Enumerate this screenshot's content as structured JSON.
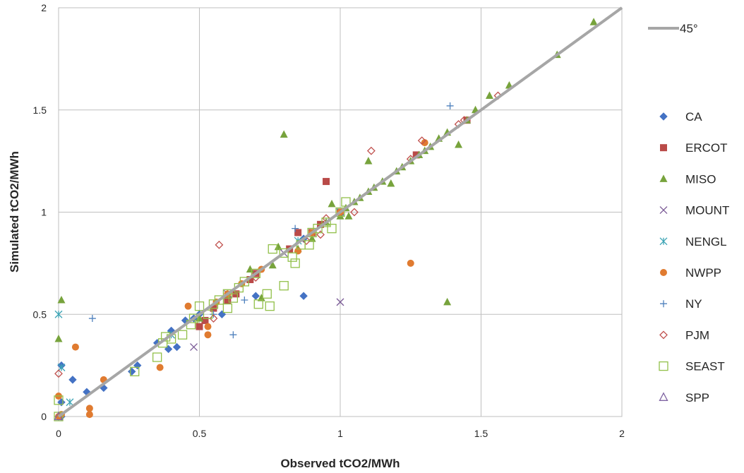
{
  "chart_data": {
    "type": "scatter",
    "xlabel": "Observed tCO2/MWh",
    "ylabel": "Simulated tCO2/MWh",
    "xlim": [
      0,
      2
    ],
    "ylim": [
      0,
      2
    ],
    "x_ticks": [
      "0",
      "0.5",
      "1",
      "1.5",
      "2"
    ],
    "y_ticks": [
      "0",
      "0.5",
      "1",
      "1.5",
      "2"
    ],
    "grid": true,
    "legend_position": "right",
    "reference_line": {
      "name": "45°",
      "from": [
        0,
        0
      ],
      "to": [
        2,
        2
      ],
      "color": "#a6a6a6"
    },
    "series": [
      {
        "name": "CA",
        "marker": "diamond",
        "color": "#4472c4",
        "points": [
          [
            0.0,
            0.0
          ],
          [
            0.01,
            0.0
          ],
          [
            0.01,
            0.25
          ],
          [
            0.01,
            0.07
          ],
          [
            0.05,
            0.18
          ],
          [
            0.1,
            0.12
          ],
          [
            0.16,
            0.14
          ],
          [
            0.26,
            0.22
          ],
          [
            0.28,
            0.25
          ],
          [
            0.35,
            0.36
          ],
          [
            0.39,
            0.33
          ],
          [
            0.4,
            0.42
          ],
          [
            0.42,
            0.34
          ],
          [
            0.45,
            0.47
          ],
          [
            0.48,
            0.48
          ],
          [
            0.5,
            0.5
          ],
          [
            0.58,
            0.5
          ],
          [
            0.7,
            0.59
          ],
          [
            0.87,
            0.59
          ],
          [
            0.87,
            0.87
          ]
        ]
      },
      {
        "name": "ERCOT",
        "marker": "square",
        "color": "#b94a48",
        "points": [
          [
            0.5,
            0.44
          ],
          [
            0.52,
            0.47
          ],
          [
            0.55,
            0.53
          ],
          [
            0.6,
            0.57
          ],
          [
            0.63,
            0.6
          ],
          [
            0.68,
            0.67
          ],
          [
            0.7,
            0.7
          ],
          [
            0.82,
            0.82
          ],
          [
            0.85,
            0.9
          ],
          [
            0.9,
            0.9
          ],
          [
            0.93,
            0.94
          ],
          [
            0.95,
            1.15
          ],
          [
            1.0,
            1.0
          ],
          [
            1.27,
            1.28
          ],
          [
            1.45,
            1.45
          ]
        ]
      },
      {
        "name": "MISO",
        "marker": "triangle",
        "color": "#77a33c",
        "points": [
          [
            0.0,
            0.38
          ],
          [
            0.01,
            0.57
          ],
          [
            0.5,
            0.48
          ],
          [
            0.6,
            0.6
          ],
          [
            0.68,
            0.72
          ],
          [
            0.72,
            0.58
          ],
          [
            0.76,
            0.74
          ],
          [
            0.78,
            0.83
          ],
          [
            0.8,
            1.38
          ],
          [
            0.85,
            0.82
          ],
          [
            0.9,
            0.87
          ],
          [
            0.95,
            0.95
          ],
          [
            0.97,
            1.04
          ],
          [
            1.0,
            0.98
          ],
          [
            1.02,
            1.02
          ],
          [
            1.03,
            0.98
          ],
          [
            1.05,
            1.05
          ],
          [
            1.07,
            1.07
          ],
          [
            1.1,
            1.1
          ],
          [
            1.1,
            1.25
          ],
          [
            1.12,
            1.12
          ],
          [
            1.15,
            1.15
          ],
          [
            1.18,
            1.14
          ],
          [
            1.2,
            1.2
          ],
          [
            1.22,
            1.22
          ],
          [
            1.25,
            1.25
          ],
          [
            1.28,
            1.28
          ],
          [
            1.3,
            1.3
          ],
          [
            1.32,
            1.32
          ],
          [
            1.35,
            1.36
          ],
          [
            1.38,
            1.39
          ],
          [
            1.38,
            0.56
          ],
          [
            1.42,
            1.33
          ],
          [
            1.45,
            1.45
          ],
          [
            1.48,
            1.5
          ],
          [
            1.53,
            1.57
          ],
          [
            1.6,
            1.62
          ],
          [
            1.77,
            1.77
          ],
          [
            1.9,
            1.93
          ]
        ]
      },
      {
        "name": "MOUNT",
        "marker": "x",
        "color": "#7a5a96",
        "points": [
          [
            0.4,
            0.4
          ],
          [
            0.48,
            0.34
          ],
          [
            0.6,
            0.6
          ],
          [
            0.8,
            0.8
          ],
          [
            1.0,
            0.56
          ]
        ]
      },
      {
        "name": "NENGL",
        "marker": "asterisk",
        "color": "#3da4b5",
        "points": [
          [
            0.0,
            0.5
          ],
          [
            0.01,
            0.24
          ],
          [
            0.04,
            0.07
          ],
          [
            0.4,
            0.4
          ],
          [
            0.85,
            0.86
          ],
          [
            1.0,
            1.0
          ]
        ]
      },
      {
        "name": "NWPP",
        "marker": "circle",
        "color": "#e07b30",
        "points": [
          [
            0.0,
            0.0
          ],
          [
            0.0,
            0.1
          ],
          [
            0.01,
            0.01
          ],
          [
            0.06,
            0.34
          ],
          [
            0.11,
            0.01
          ],
          [
            0.11,
            0.04
          ],
          [
            0.16,
            0.18
          ],
          [
            0.36,
            0.24
          ],
          [
            0.46,
            0.54
          ],
          [
            0.53,
            0.4
          ],
          [
            0.53,
            0.44
          ],
          [
            0.56,
            0.56
          ],
          [
            0.6,
            0.6
          ],
          [
            0.65,
            0.65
          ],
          [
            0.72,
            0.72
          ],
          [
            0.85,
            0.81
          ],
          [
            0.9,
            0.9
          ],
          [
            1.0,
            1.0
          ],
          [
            1.25,
            0.75
          ],
          [
            1.3,
            1.34
          ]
        ]
      },
      {
        "name": "NY",
        "marker": "plus",
        "color": "#4f81bd",
        "points": [
          [
            0.12,
            0.48
          ],
          [
            0.55,
            0.5
          ],
          [
            0.62,
            0.4
          ],
          [
            0.66,
            0.57
          ],
          [
            0.84,
            0.92
          ],
          [
            1.39,
            1.52
          ]
        ]
      },
      {
        "name": "PJM",
        "marker": "diamond-open",
        "color": "#c0504d",
        "points": [
          [
            0.0,
            0.21
          ],
          [
            0.55,
            0.48
          ],
          [
            0.57,
            0.84
          ],
          [
            0.7,
            0.68
          ],
          [
            0.88,
            0.86
          ],
          [
            0.93,
            0.89
          ],
          [
            0.95,
            0.97
          ],
          [
            1.05,
            1.0
          ],
          [
            1.11,
            1.3
          ],
          [
            1.25,
            1.26
          ],
          [
            1.29,
            1.35
          ],
          [
            1.42,
            1.43
          ],
          [
            1.44,
            1.45
          ],
          [
            1.56,
            1.57
          ]
        ]
      },
      {
        "name": "SEAST",
        "marker": "square-open",
        "color": "#92c04a",
        "points": [
          [
            0.0,
            0.0
          ],
          [
            0.0,
            0.08
          ],
          [
            0.27,
            0.22
          ],
          [
            0.35,
            0.29
          ],
          [
            0.37,
            0.36
          ],
          [
            0.38,
            0.39
          ],
          [
            0.4,
            0.38
          ],
          [
            0.44,
            0.4
          ],
          [
            0.47,
            0.45
          ],
          [
            0.48,
            0.48
          ],
          [
            0.5,
            0.54
          ],
          [
            0.53,
            0.5
          ],
          [
            0.55,
            0.55
          ],
          [
            0.57,
            0.57
          ],
          [
            0.6,
            0.53
          ],
          [
            0.6,
            0.6
          ],
          [
            0.62,
            0.58
          ],
          [
            0.64,
            0.63
          ],
          [
            0.66,
            0.66
          ],
          [
            0.7,
            0.7
          ],
          [
            0.71,
            0.55
          ],
          [
            0.74,
            0.6
          ],
          [
            0.75,
            0.54
          ],
          [
            0.76,
            0.82
          ],
          [
            0.8,
            0.64
          ],
          [
            0.8,
            0.8
          ],
          [
            0.83,
            0.78
          ],
          [
            0.84,
            0.75
          ],
          [
            0.86,
            0.84
          ],
          [
            0.89,
            0.84
          ],
          [
            0.9,
            0.9
          ],
          [
            0.92,
            0.92
          ],
          [
            0.95,
            0.95
          ],
          [
            0.97,
            0.92
          ],
          [
            1.0,
            1.0
          ],
          [
            1.02,
            1.05
          ]
        ]
      },
      {
        "name": "SPP",
        "marker": "triangle-open",
        "color": "#8064a2",
        "points": [
          [
            0.0,
            0.0
          ]
        ]
      }
    ]
  }
}
